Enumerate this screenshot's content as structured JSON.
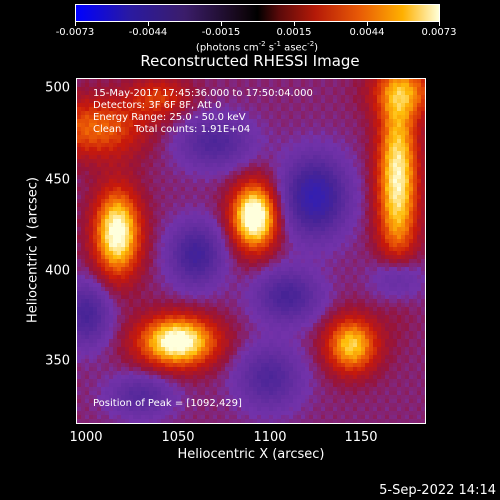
{
  "chart_data": {
    "type": "heatmap",
    "title": "Reconstructed RHESSI Image",
    "xlabel": "Heliocentric X (arcsec)",
    "ylabel": "Heliocentric Y (arcsec)",
    "xlim": [
      995,
      1185
    ],
    "ylim": [
      315,
      505
    ],
    "x_ticks": [
      1000,
      1050,
      1100,
      1150
    ],
    "y_ticks": [
      350,
      400,
      450,
      500
    ],
    "colorbar": {
      "ticks": [
        -0.0073,
        -0.0044,
        -0.0015,
        0.0015,
        0.0044,
        0.0073
      ],
      "tick_labels": [
        "-0.0073",
        "-0.0044",
        "-0.0015",
        "0.0015",
        "0.0044",
        "0.0073"
      ],
      "units_prefix": "(photons cm",
      "units_exp1": "-2",
      "units_mid1": " s",
      "units_exp2": "-1",
      "units_mid2": " asec",
      "units_exp3": "-2",
      "units_suffix": ")"
    },
    "sources": [
      {
        "x": 1092,
        "y": 429,
        "sx": 9,
        "sy": 13,
        "amp": 0.0073
      },
      {
        "x": 1017,
        "y": 420,
        "sx": 9,
        "sy": 17,
        "amp": 0.0066
      },
      {
        "x": 1050,
        "y": 360,
        "sx": 15,
        "sy": 10,
        "amp": 0.0068
      },
      {
        "x": 1145,
        "y": 358,
        "sx": 10,
        "sy": 11,
        "amp": 0.0052
      },
      {
        "x": 1170,
        "y": 450,
        "sx": 8,
        "sy": 35,
        "amp": 0.006
      },
      {
        "x": 1005,
        "y": 478,
        "sx": 20,
        "sy": 12,
        "amp": 0.0035
      },
      {
        "x": 1040,
        "y": 495,
        "sx": 12,
        "sy": 8,
        "amp": 0.0025
      },
      {
        "x": 1175,
        "y": 498,
        "sx": 14,
        "sy": 10,
        "amp": 0.003
      },
      {
        "x": 1125,
        "y": 440,
        "sx": 12,
        "sy": 15,
        "amp": -0.006
      },
      {
        "x": 1060,
        "y": 408,
        "sx": 10,
        "sy": 12,
        "amp": -0.0045
      },
      {
        "x": 1000,
        "y": 375,
        "sx": 9,
        "sy": 12,
        "amp": -0.004
      },
      {
        "x": 1110,
        "y": 385,
        "sx": 12,
        "sy": 10,
        "amp": -0.004
      },
      {
        "x": 1170,
        "y": 395,
        "sx": 9,
        "sy": 9,
        "amp": -0.003
      },
      {
        "x": 1070,
        "y": 470,
        "sx": 14,
        "sy": 10,
        "amp": -0.0035
      },
      {
        "x": 1100,
        "y": 340,
        "sx": 12,
        "sy": 12,
        "amp": -0.0035
      },
      {
        "x": 1030,
        "y": 330,
        "sx": 12,
        "sy": 8,
        "amp": -0.003
      }
    ]
  },
  "info": {
    "time_range": "15-May-2017 17:45:36.000 to 17:50:04.000",
    "detectors": "Detectors: 3F 6F 8F, Att 0",
    "energy": "Energy Range: 25.0 - 50.0 keV",
    "method": "Clean    Total counts: 1.91E+04",
    "peak": "Position of Peak = [1092,429]"
  },
  "footer": {
    "date": "5-Sep-2022 14:14"
  }
}
